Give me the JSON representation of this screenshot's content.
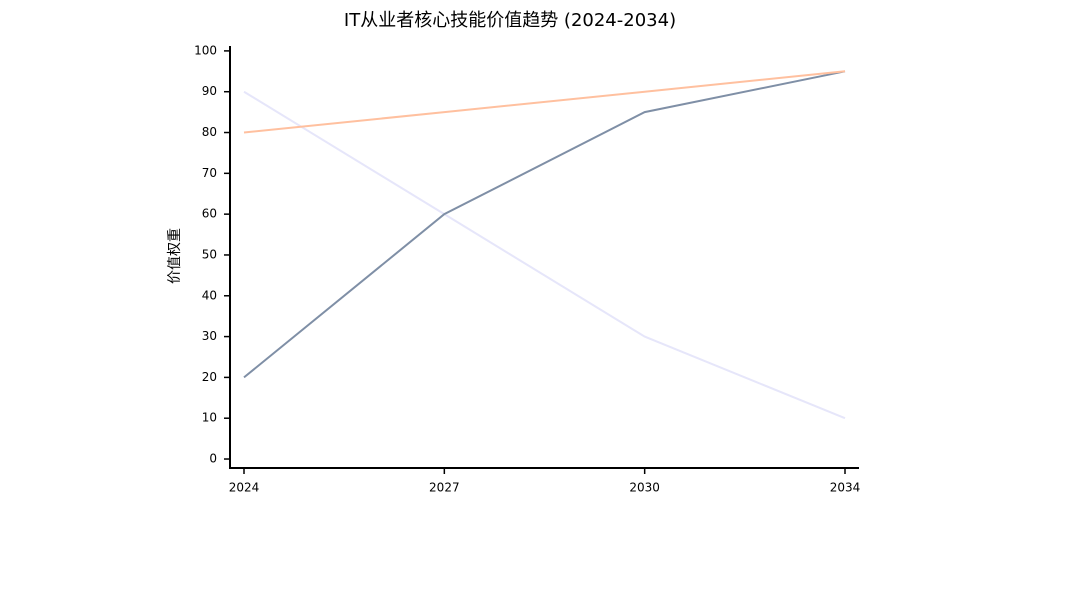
{
  "chart_data": {
    "type": "line",
    "title": "IT从业者核心技能价值趋势 (2024-2034)",
    "y_label": "价值权重",
    "categories": [
      "2024",
      "2027",
      "2030",
      "2034"
    ],
    "series": [
      {
        "color": "#e6e6fa",
        "values": [
          90,
          60,
          30,
          10
        ]
      },
      {
        "color": "#7f8fa6",
        "values": [
          20,
          60,
          85,
          95
        ]
      },
      {
        "color": "#ffc09f",
        "values": [
          80,
          85,
          90,
          95
        ]
      }
    ],
    "ylim": [
      -2.2,
      101.2
    ],
    "yticks": [
      0,
      10,
      20,
      30,
      40,
      50,
      60,
      70,
      80,
      90,
      100
    ]
  }
}
